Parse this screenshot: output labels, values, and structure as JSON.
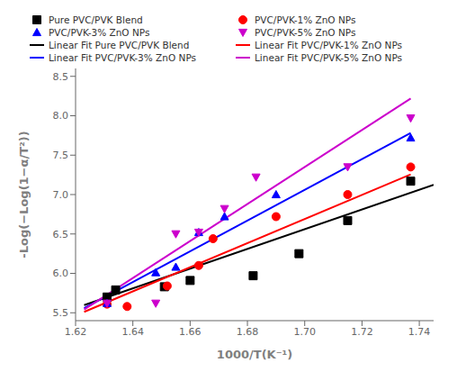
{
  "chart_data": {
    "type": "scatter",
    "xlabel": "1000/T(K⁻¹)",
    "ylabel": "-Log(−Log(1−α/T²))",
    "xlim": [
      1.62,
      1.745
    ],
    "ylim": [
      5.4,
      8.6
    ],
    "xticks": [
      1.62,
      1.64,
      1.66,
      1.68,
      {
        "value": 1.7,
        "label": "1.70"
      },
      1.72,
      1.74
    ],
    "yticks": [
      5.5,
      {
        "value": 6,
        "label": "6.0"
      },
      6.5,
      {
        "value": 7,
        "label": "7.0"
      },
      7.5,
      {
        "value": 8,
        "label": "8.0"
      },
      8.5
    ],
    "grid": false,
    "legend": "upper left",
    "series": [
      {
        "name": "Pure PVC/PVK Blend",
        "type": "scatter",
        "color": "black",
        "marker": "square",
        "x": [
          1.631,
          1.634,
          1.651,
          1.66,
          1.682,
          1.698,
          1.715,
          1.737
        ],
        "values": [
          5.7,
          5.79,
          5.83,
          5.91,
          5.97,
          6.25,
          6.67,
          7.17
        ]
      },
      {
        "name": "PVC/PVK-1% ZnO NPs",
        "type": "scatter",
        "color": "red",
        "marker": "circle",
        "x": [
          1.631,
          1.638,
          1.652,
          1.663,
          1.668,
          1.69,
          1.715,
          1.737
        ],
        "values": [
          5.61,
          5.58,
          5.84,
          6.1,
          6.44,
          6.72,
          7.0,
          7.35
        ]
      },
      {
        "name": "PVC/PVK-3% ZnO NPs",
        "type": "scatter",
        "color": "blue",
        "marker": "triangle",
        "x": [
          1.631,
          1.648,
          1.655,
          1.663,
          1.672,
          1.69,
          1.737
        ],
        "values": [
          5.62,
          6.01,
          6.08,
          6.52,
          6.72,
          7.0,
          7.72
        ]
      },
      {
        "name": "PVC/PVK-5% ZnO NPs",
        "type": "scatter",
        "color": "#cc00cc",
        "marker": "triangle_down",
        "x": [
          1.631,
          1.648,
          1.655,
          1.663,
          1.672,
          1.683,
          1.715,
          1.737
        ],
        "values": [
          5.62,
          5.62,
          6.5,
          6.52,
          6.82,
          7.22,
          7.35,
          7.97
        ]
      },
      {
        "name": "Linear Fit Pure PVC/PVK Blend",
        "type": "line",
        "color": "black",
        "line_style": "solid",
        "x": [
          1.623,
          1.745
        ],
        "values": [
          5.5975,
          7.1225
        ]
      },
      {
        "name": "Linear Fit PVC/PVK-1% ZnO NPs",
        "type": "line",
        "color": "red",
        "line_style": "solid",
        "x": [
          1.623,
          1.737
        ],
        "values": [
          5.5119,
          7.2561
        ]
      },
      {
        "name": "Linear Fit PVC/PVK-3% ZnO NPs",
        "type": "line",
        "color": "blue",
        "line_style": "solid",
        "x": [
          1.623,
          1.737
        ],
        "values": [
          5.5585,
          7.7815
        ]
      },
      {
        "name": "Linear Fit PVC/PVK-5% ZnO NPs",
        "type": "line",
        "color": "#cc00cc",
        "line_style": "solid",
        "x": [
          1.623,
          1.737
        ],
        "values": [
          5.5405,
          8.2195
        ]
      }
    ]
  }
}
